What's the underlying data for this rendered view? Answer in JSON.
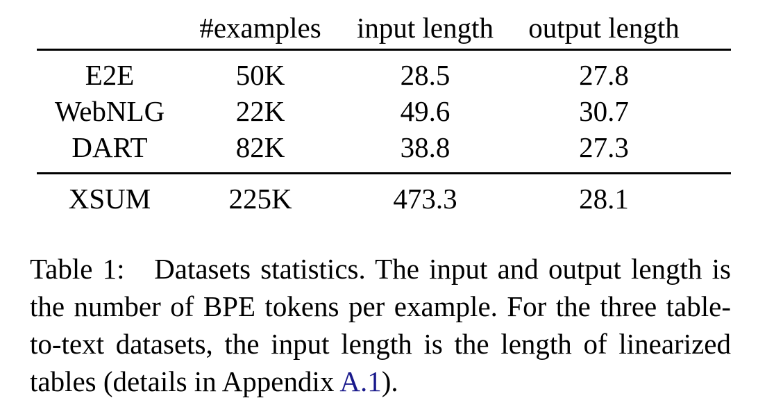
{
  "table": {
    "headers": [
      "",
      "#examples",
      "input length",
      "output length"
    ],
    "rows": [
      [
        "E2E",
        "50K",
        "28.5",
        "27.8"
      ],
      [
        "WebNLG",
        "22K",
        "49.6",
        "30.7"
      ],
      [
        "DART",
        "82K",
        "38.8",
        "27.3"
      ],
      [
        "XSUM",
        "225K",
        "473.3",
        "28.1"
      ]
    ]
  },
  "caption": {
    "label": "Table 1:",
    "text": "Datasets statistics. The input and output length is the number of BPE tokens per example. For the three table-to-text datasets, the input length is the length of linearized tables (details in Appendix ",
    "ref": "A.1",
    "tail": ")."
  },
  "colors": {
    "text": "#000000",
    "link": "#1a1a8c"
  }
}
